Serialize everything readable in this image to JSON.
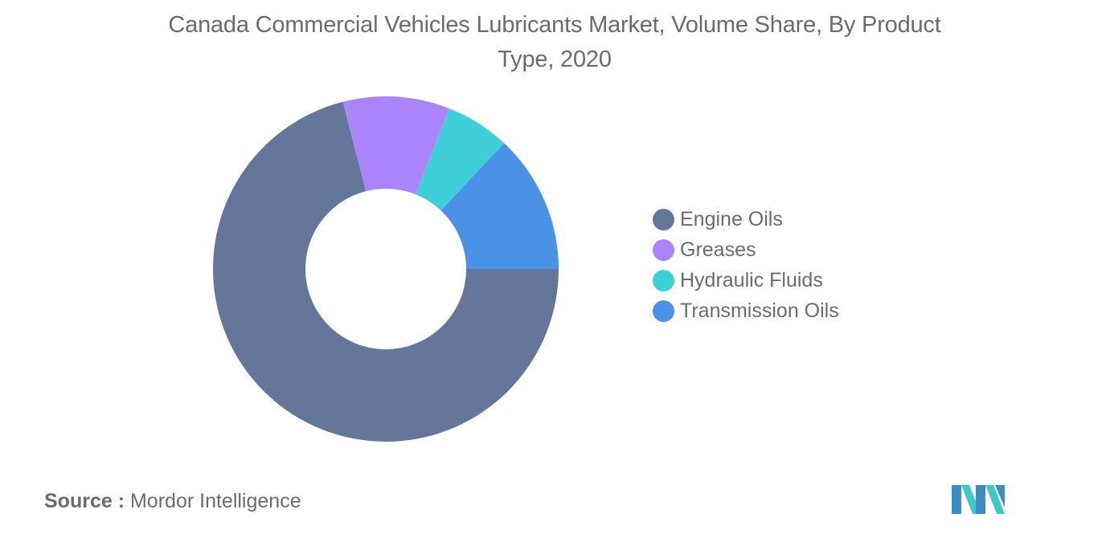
{
  "title": "Canada Commercial Vehicles Lubricants Market, Volume Share, By Product Type, 2020",
  "source": {
    "label": "Source :",
    "text": "Mordor Intelligence"
  },
  "logo": {
    "icon": "mordor-intelligence-logo",
    "colors": [
      "#3c8dc4",
      "#3fc8c8"
    ]
  },
  "chart_data": {
    "type": "pie",
    "variant": "donut",
    "categories": [
      "Engine Oils",
      "Greases",
      "Hydraulic Fluids",
      "Transmission Oils"
    ],
    "values": [
      71,
      10,
      6,
      13
    ],
    "colors": [
      "#64779a",
      "#ab83fb",
      "#3ecfd9",
      "#4b91e6"
    ],
    "legend": {
      "position": "right"
    }
  }
}
